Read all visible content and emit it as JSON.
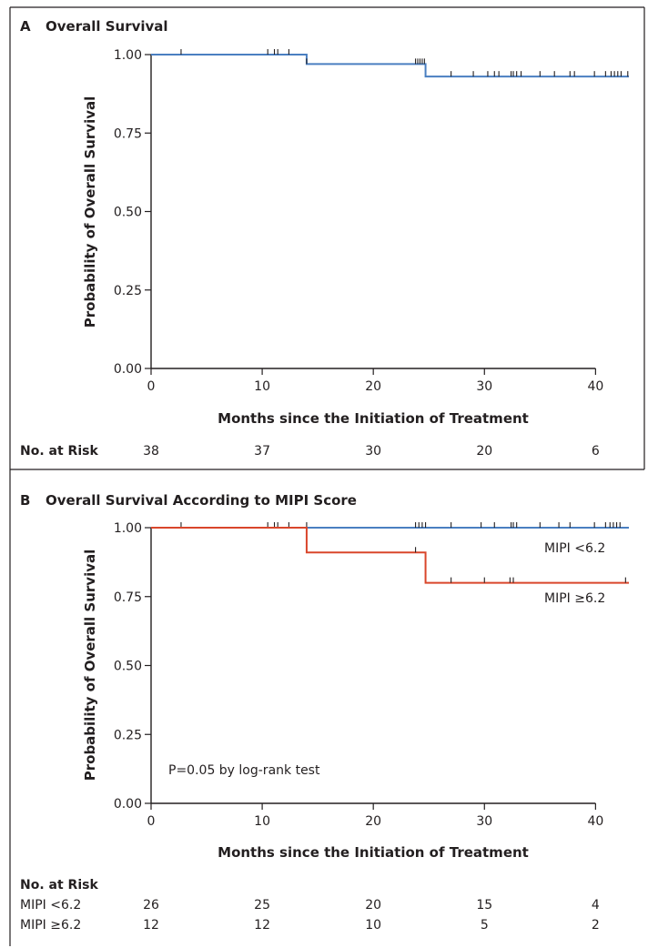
{
  "chart_data": [
    {
      "panel_letter": "A",
      "title": "Overall Survival",
      "type": "line",
      "step": true,
      "xlabel": "Months since the Initiation of Treatment",
      "ylabel": "Probability of Overall Survival",
      "xlim": [
        0,
        43
      ],
      "ylim": [
        0,
        1
      ],
      "x_ticks": [
        0,
        10,
        20,
        30,
        40
      ],
      "y_ticks": [
        "0.00",
        "0.25",
        "0.50",
        "0.75",
        "1.00"
      ],
      "series": [
        {
          "color": "#4a7fc1",
          "steps": [
            [
              0,
              1.0
            ],
            [
              14,
              0.97
            ],
            [
              24.7,
              0.93
            ],
            [
              43,
              0.93
            ]
          ],
          "censored": [
            2.7,
            10.5,
            11.1,
            11.4,
            12.4,
            14,
            23.8,
            24.0,
            24.2,
            24.4,
            24.6,
            27,
            29,
            30.3,
            30.9,
            31.3,
            32.4,
            32.6,
            32.9,
            33.3,
            35,
            36.3,
            37.7,
            38.1,
            39.9,
            40.9,
            41.4,
            41.7,
            42,
            42.3,
            42.9
          ]
        }
      ],
      "risk_table": {
        "heading": "No. at Risk",
        "x": [
          0,
          10,
          20,
          30,
          40
        ],
        "rows": [
          {
            "label": "",
            "values": [
              "38",
              "37",
              "30",
              "20",
              "6"
            ]
          }
        ]
      }
    },
    {
      "panel_letter": "B",
      "title": "Overall Survival According to MIPI Score",
      "type": "line",
      "step": true,
      "xlabel": "Months since the Initiation of Treatment",
      "ylabel": "Probability of Overall Survival",
      "xlim": [
        0,
        43
      ],
      "ylim": [
        0,
        1
      ],
      "x_ticks": [
        0,
        10,
        20,
        30,
        40
      ],
      "y_ticks": [
        "0.00",
        "0.25",
        "0.50",
        "0.75",
        "1.00"
      ],
      "annotation": "P=0.05 by log-rank test",
      "series": [
        {
          "name": "MIPI <6.2",
          "color": "#4a7fc1",
          "steps": [
            [
              0,
              1.0
            ],
            [
              43,
              1.0
            ]
          ],
          "censored": [
            2.7,
            10.5,
            11.1,
            11.4,
            12.4,
            14,
            23.8,
            24.1,
            24.4,
            24.7,
            27,
            29.7,
            30.9,
            32.4,
            32.6,
            32.9,
            35,
            36.7,
            37.7,
            39.9,
            40.9,
            41.3,
            41.6,
            41.9,
            42.2
          ]
        },
        {
          "name": "MIPI ≥6.2",
          "color": "#d9462b",
          "steps": [
            [
              0,
              1.0
            ],
            [
              14,
              0.91
            ],
            [
              24.7,
              0.8
            ],
            [
              43,
              0.8
            ]
          ],
          "censored": [
            23.8,
            27,
            30,
            32.3,
            32.6,
            42.7
          ]
        }
      ],
      "risk_table": {
        "heading": "No. at Risk",
        "x": [
          0,
          10,
          20,
          30,
          40
        ],
        "rows": [
          {
            "label": "MIPI <6.2",
            "values": [
              "26",
              "25",
              "20",
              "15",
              "4"
            ]
          },
          {
            "label": "MIPI ≥6.2",
            "values": [
              "12",
              "12",
              "10",
              "5",
              "2"
            ]
          }
        ]
      }
    }
  ]
}
